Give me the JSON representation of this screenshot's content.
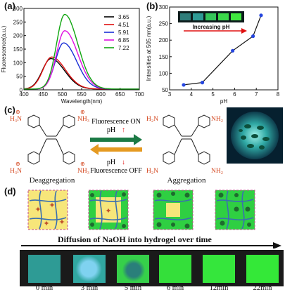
{
  "panels": {
    "a": "(a)",
    "b": "(b)",
    "c": "(c)",
    "d": "(d)"
  },
  "chart_data": [
    {
      "type": "line",
      "xlabel": "Wavelength(nm)",
      "ylabel": "Fluorescence(a.u.)",
      "xlim": [
        400,
        700
      ],
      "ylim": [
        0,
        300
      ],
      "xticks": [
        "400",
        "450",
        "500",
        "550",
        "600",
        "650",
        "700"
      ],
      "yticks": [
        "0",
        "50",
        "100",
        "150",
        "200",
        "250",
        "300"
      ],
      "legend_position": "top-right",
      "series": [
        {
          "name": "3.65",
          "color": "#000000",
          "peak_x": 470,
          "peak_y": 112,
          "width": 42
        },
        {
          "name": "4.51",
          "color": "#e01010",
          "peak_x": 472,
          "peak_y": 118,
          "width": 42
        },
        {
          "name": "5.91",
          "color": "#1a2fd6",
          "peak_x": 503,
          "peak_y": 170,
          "width": 40
        },
        {
          "name": "6.85",
          "color": "#e010e0",
          "peak_x": 506,
          "peak_y": 215,
          "width": 40
        },
        {
          "name": "7.22",
          "color": "#11a611",
          "peak_x": 506,
          "peak_y": 275,
          "width": 40
        }
      ]
    },
    {
      "type": "scatter",
      "xlabel": "pH",
      "ylabel": "Intensities at 505 nm(a.u.)",
      "xlim": [
        3,
        8
      ],
      "ylim": [
        50,
        300
      ],
      "xticks": [
        "3",
        "4",
        "5",
        "6",
        "7",
        "8"
      ],
      "yticks": [
        "50",
        "100",
        "150",
        "200",
        "250",
        "300"
      ],
      "x": [
        3.65,
        4.51,
        5.91,
        6.85,
        7.22
      ],
      "y": [
        65,
        72,
        168,
        212,
        275
      ],
      "inset_label": "Increasing pH"
    }
  ],
  "scheme": {
    "left_label": "Deaggregation",
    "right_label": "Aggregation",
    "on_line1": "Fluorescence ON",
    "on_line2": "pH",
    "off_line1": "pH",
    "off_line2": "Fluorescence OFF",
    "nh3": "H₃N",
    "nh3r": "NH₃",
    "nh2": "H₂N",
    "nh2r": "NH₂",
    "plus": "⊕"
  },
  "diffusion": {
    "title": "Diffusion of NaOH into hydrogel over time",
    "times": [
      "0 min",
      "3 min",
      "5 min",
      "6 min",
      "12min",
      "22min"
    ]
  },
  "colors": {
    "accent_green": "#22c02a",
    "cyan": "#3fb9b6",
    "orange": "#e59a21"
  }
}
